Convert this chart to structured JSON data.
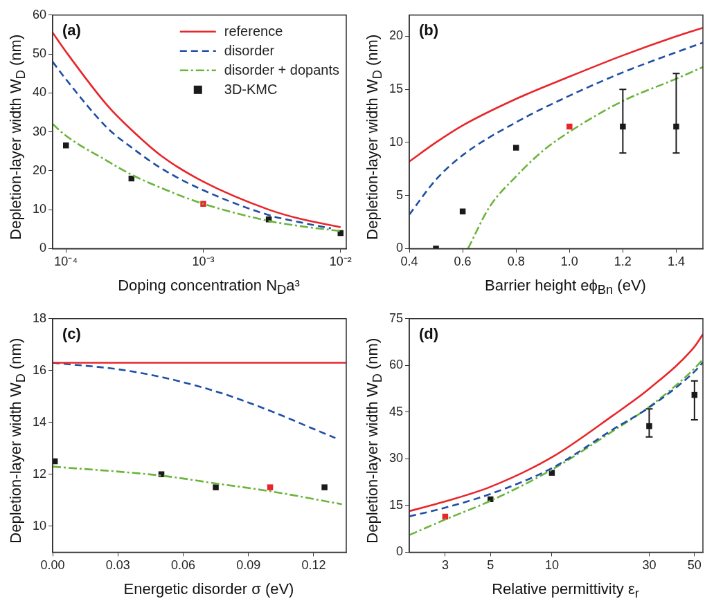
{
  "chart_data": [
    {
      "type": "line",
      "title": "(a)",
      "xlabel": "Doping concentration N$_{D}$a³",
      "ylabel": "Depletion-layer width W$_{D}$ (nm)",
      "log": "x",
      "xlim": [
        8e-05,
        0.011
      ],
      "xticks": [
        {
          "value": 0.0001,
          "label": "10⁻⁴"
        },
        {
          "value": 0.001,
          "label": "10⁻³"
        },
        {
          "value": 0.01,
          "label": "10⁻²"
        }
      ],
      "ylim": [
        0,
        60
      ],
      "yticks": [
        0,
        10,
        20,
        30,
        40,
        50,
        60
      ],
      "legend": "top right",
      "series": [
        {
          "name": "reference",
          "color": "#e8262a",
          "line_style": "solid",
          "marker": "none",
          "x": [
            8e-05,
            0.0001,
            0.0002,
            0.0003,
            0.0005,
            0.001,
            0.003,
            0.005,
            0.01
          ],
          "values": [
            55.5,
            50.6,
            36.8,
            30.5,
            23.7,
            17.2,
            10,
            7.7,
            5.5
          ]
        },
        {
          "name": "disorder",
          "color": "#1f4fa3",
          "line_style": "dashed",
          "marker": "none",
          "x": [
            8e-05,
            0.0001,
            0.0002,
            0.0003,
            0.0005,
            0.001,
            0.003,
            0.005,
            0.0085
          ],
          "values": [
            48,
            43.5,
            31,
            26,
            20.5,
            15,
            8.6,
            6.8,
            5.2
          ]
        },
        {
          "name": "disorder + dopants",
          "color": "#6ab43c",
          "line_style": "dashdot",
          "marker": "none",
          "x": [
            8e-05,
            0.0001,
            0.0002,
            0.0003,
            0.0005,
            0.001,
            0.003,
            0.005,
            0.01
          ],
          "values": [
            32,
            29,
            22.5,
            19,
            15.5,
            11.5,
            7.1,
            5.8,
            4.5
          ]
        },
        {
          "name": "3D-KMC",
          "type": "scatter",
          "color": "#1a1a1a",
          "marker": "square",
          "x": [
            0.0001,
            0.0003,
            0.003,
            0.01
          ],
          "values": [
            26.5,
            18,
            7.5,
            4
          ]
        },
        {
          "type": "scatter",
          "color": "#e8262a",
          "marker": "square",
          "x": [
            0.001
          ],
          "values": [
            11.5
          ]
        }
      ]
    },
    {
      "type": "line",
      "title": "(b)",
      "xlabel": "Barrier height eϕ$_{Bn}$ (eV)",
      "ylabel": "Depletion-layer width W$_{D}$ (nm)",
      "xlim": [
        0.4,
        1.5
      ],
      "xticks": [
        0.4,
        0.6,
        0.8,
        {
          "value": 1,
          "label": "1.0"
        },
        1.2,
        1.4
      ],
      "ylim": [
        0,
        22
      ],
      "yticks": [
        0,
        5,
        10,
        15,
        20
      ],
      "series": [
        {
          "color": "#e8262a",
          "line_style": "solid",
          "marker": "none",
          "x": [
            0.4,
            0.5,
            0.6,
            0.8,
            1,
            1.2,
            1.4,
            1.5
          ],
          "values": [
            8.2,
            10,
            11.6,
            14.1,
            16.2,
            18.2,
            20,
            20.8
          ]
        },
        {
          "color": "#1f4fa3",
          "line_style": "dashed",
          "marker": "none",
          "x": [
            0.4,
            0.5,
            0.6,
            0.8,
            1,
            1.2,
            1.4,
            1.5
          ],
          "values": [
            3.2,
            6.5,
            8.8,
            11.9,
            14.4,
            16.6,
            18.5,
            19.4
          ]
        },
        {
          "color": "#6ab43c",
          "line_style": "dashdot",
          "marker": "none",
          "x": [
            0.62,
            0.7,
            0.8,
            0.9,
            1,
            1.2,
            1.4,
            1.5
          ],
          "values": [
            0,
            3.9,
            6.8,
            9.2,
            11,
            13.9,
            16,
            17.1
          ]
        },
        {
          "type": "scatter",
          "color": "#1a1a1a",
          "marker": "square",
          "x": [
            0.5,
            0.6,
            0.8,
            1.2,
            1.4
          ],
          "values": [
            0,
            3.5,
            9.5,
            11.5,
            11.5
          ],
          "errors": [
            null,
            null,
            null,
            [
              9,
              15
            ],
            [
              9,
              16.5
            ]
          ]
        },
        {
          "type": "scatter",
          "color": "#e8262a",
          "marker": "square",
          "x": [
            1
          ],
          "values": [
            11.5
          ]
        }
      ]
    },
    {
      "type": "line",
      "title": "(c)",
      "xlabel": "Energetic disorder σ (eV)",
      "ylabel": "Depletion-layer width W$_{D}$ (nm)",
      "xlim": [
        0,
        0.135
      ],
      "xticks": [
        {
          "value": 0,
          "label": "0.00"
        },
        {
          "value": 0.03,
          "label": "0.03"
        },
        {
          "value": 0.06,
          "label": "0.06"
        },
        {
          "value": 0.09,
          "label": "0.09"
        },
        {
          "value": 0.12,
          "label": "0.12"
        }
      ],
      "ylim": [
        9,
        18
      ],
      "yticks": [
        10,
        12,
        14,
        16,
        18
      ],
      "series": [
        {
          "color": "#e8262a",
          "line_style": "solid",
          "marker": "none",
          "x": [
            0,
            0.135
          ],
          "values": [
            16.3,
            16.3
          ]
        },
        {
          "color": "#1f4fa3",
          "line_style": "dashed",
          "marker": "none",
          "x": [
            0,
            0.03,
            0.05,
            0.075,
            0.1,
            0.12,
            0.13
          ],
          "values": [
            16.3,
            16.05,
            15.75,
            15.2,
            14.45,
            13.75,
            13.4
          ]
        },
        {
          "color": "#6ab43c",
          "line_style": "dashdot",
          "marker": "none",
          "x": [
            0,
            0.05,
            0.075,
            0.1,
            0.133
          ],
          "values": [
            12.3,
            11.95,
            11.65,
            11.35,
            10.85
          ]
        },
        {
          "type": "scatter",
          "color": "#1a1a1a",
          "marker": "square",
          "x": [
            0.001,
            0.05,
            0.075,
            0.125
          ],
          "values": [
            12.5,
            12,
            11.5,
            11.5
          ]
        },
        {
          "type": "scatter",
          "color": "#e8262a",
          "marker": "square",
          "x": [
            0.1
          ],
          "values": [
            11.5
          ]
        }
      ]
    },
    {
      "type": "line",
      "title": "(d)",
      "xlabel": "Relative permittivity ε$_{r}$",
      "ylabel": "Depletion-layer width W$_{D}$ (nm)",
      "log": "x",
      "xlim": [
        2,
        55
      ],
      "xticks": [
        3,
        5,
        10,
        30,
        50
      ],
      "ylim": [
        0,
        75
      ],
      "yticks": [
        0,
        15,
        30,
        45,
        60,
        75
      ],
      "series": [
        {
          "color": "#e8262a",
          "line_style": "solid",
          "marker": "none",
          "x": [
            2,
            3,
            5,
            10,
            20,
            30,
            50,
            55
          ],
          "values": [
            13.2,
            16.3,
            21,
            30.5,
            44,
            52.5,
            66,
            70
          ]
        },
        {
          "color": "#1f4fa3",
          "line_style": "dashed",
          "marker": "none",
          "x": [
            2,
            3,
            5,
            10,
            20,
            30,
            50,
            55
          ],
          "values": [
            11.5,
            14.3,
            18.7,
            27,
            39.5,
            46.5,
            58,
            61
          ]
        },
        {
          "color": "#6ab43c",
          "line_style": "dashdot",
          "marker": "none",
          "x": [
            2,
            3,
            5,
            10,
            20,
            30,
            50,
            55
          ],
          "values": [
            5.5,
            10.5,
            16.5,
            26.5,
            39,
            46.7,
            59,
            62
          ]
        },
        {
          "type": "scatter",
          "color": "#1a1a1a",
          "marker": "square",
          "x": [
            5,
            10,
            30,
            50
          ],
          "values": [
            17,
            25.5,
            40.5,
            50.5
          ],
          "errors": [
            null,
            null,
            [
              37,
              46
            ],
            [
              42.5,
              55
            ]
          ]
        },
        {
          "type": "scatter",
          "color": "#e8262a",
          "marker": "square",
          "x": [
            3
          ],
          "values": [
            11.4
          ]
        }
      ]
    }
  ]
}
